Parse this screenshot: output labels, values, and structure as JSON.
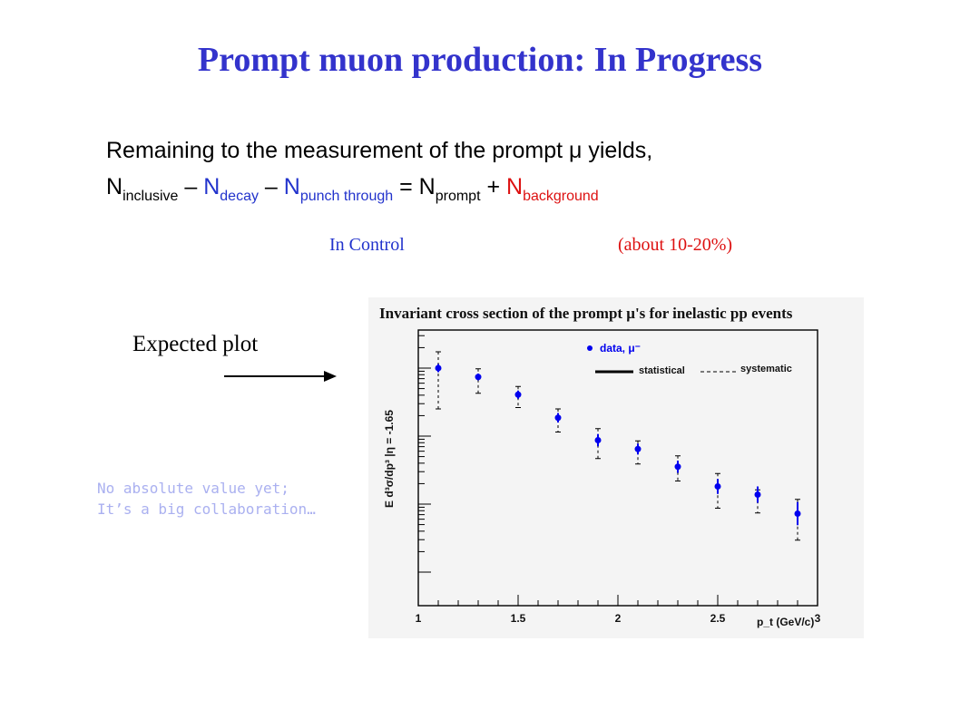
{
  "slide": {
    "title": "Prompt muon production: In Progress",
    "line1": "Remaining to the measurement of the prompt μ yields,",
    "eq": {
      "n1": "N",
      "s1": "inclusive",
      "m1": " – ",
      "n2": "N",
      "s2": "decay",
      "m2": " – ",
      "n3": "N",
      "s3": "punch through",
      "m3": " = ",
      "n4": "N",
      "s4": "prompt",
      "m4": " + ",
      "n5": "N",
      "s5": "background"
    },
    "note_control": "In Control",
    "note_fraction": "(about 10-20%)",
    "expected_label": "Expected plot",
    "comment_line1": "No absolute value yet;",
    "comment_line2": "It’s a big collaboration…",
    "colors": {
      "title": "#3333cc",
      "blue": "#2233cc",
      "red": "#dd1111",
      "comment": "#aab0f0",
      "points": "#0000ee"
    }
  },
  "chart_data": {
    "type": "scatter",
    "title": "Invariant cross section of the prompt μ's for inelastic pp events",
    "xlabel": "p_t (GeV/c)",
    "ylabel": "E d³σ/dp³ |η = -1.65",
    "xlim": [
      1,
      3
    ],
    "x_tick_labels": [
      "1",
      "1.5",
      "2",
      "2.5",
      "3"
    ],
    "legend": {
      "marker_label": "data, μ⁻",
      "stat_label": "statistical",
      "syst_label": "systematic",
      "placement": "top-right"
    },
    "grid": false,
    "log_y": true,
    "y_values_note_absent": true,
    "series": [
      {
        "name": "data, μ⁻",
        "x": [
          1.1,
          1.3,
          1.5,
          1.7,
          1.9,
          2.1,
          2.3,
          2.5,
          2.7,
          2.9
        ],
        "y_rel_log": [
          0.0,
          -0.13,
          -0.39,
          -0.73,
          -1.06,
          -1.19,
          -1.45,
          -1.74,
          -1.86,
          -2.14
        ],
        "syst_up": [
          0.24,
          0.12,
          0.12,
          0.13,
          0.17,
          0.12,
          0.16,
          0.19,
          0.07,
          0.21
        ],
        "syst_down": [
          0.6,
          0.24,
          0.19,
          0.21,
          0.27,
          0.22,
          0.21,
          0.32,
          0.27,
          0.39
        ],
        "stat": [
          0.06,
          0.05,
          0.06,
          0.07,
          0.09,
          0.08,
          0.09,
          0.11,
          0.12,
          0.17
        ]
      }
    ]
  }
}
